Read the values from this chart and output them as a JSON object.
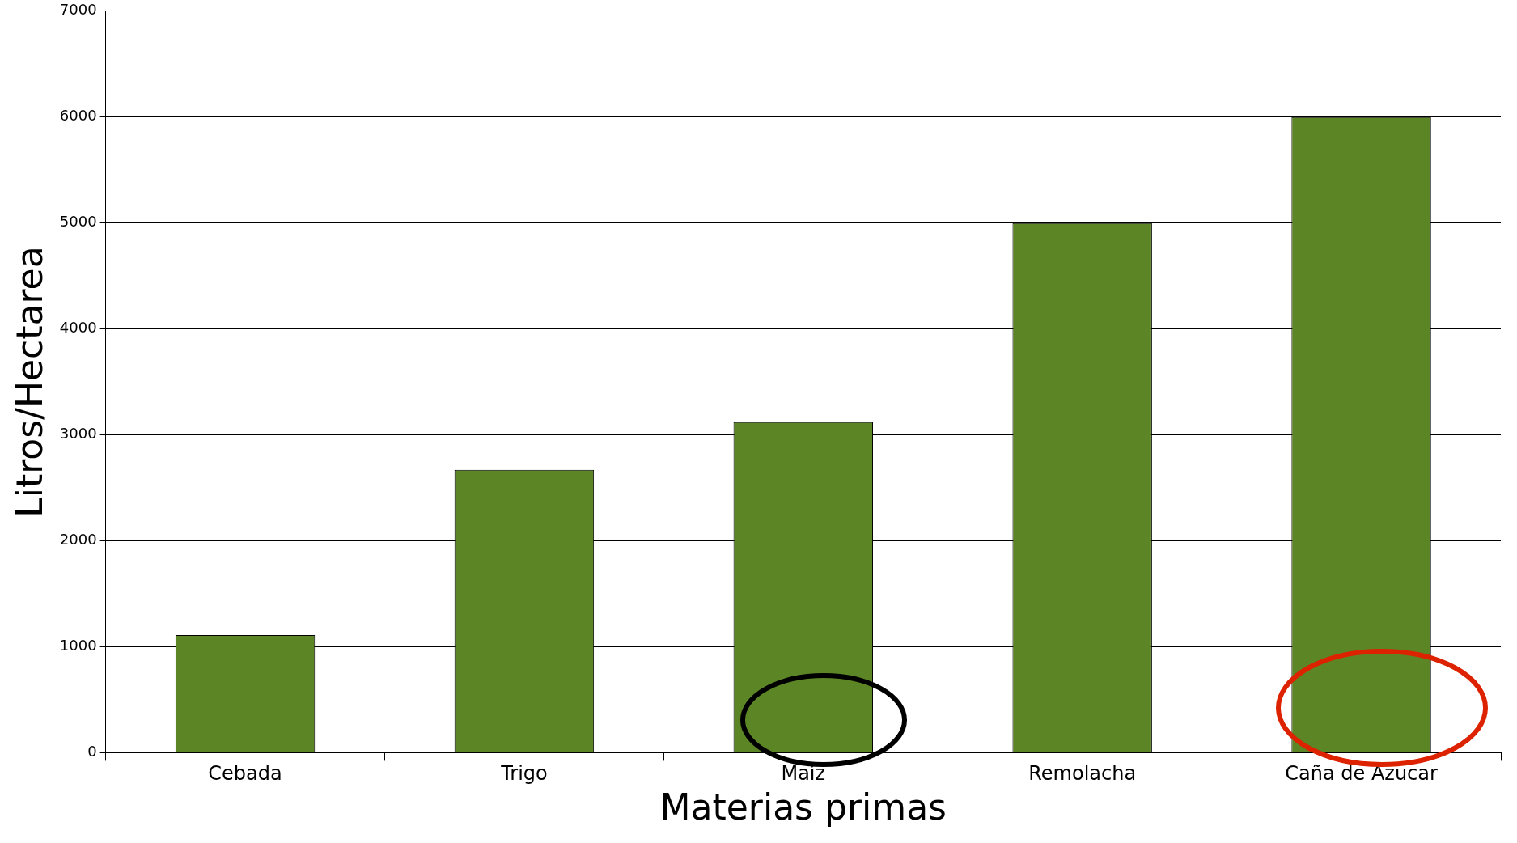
{
  "chart_data": {
    "type": "bar",
    "xlabel": "Materias primas",
    "ylabel": "Litros/Hectarea",
    "categories": [
      "Cebada",
      "Trigo",
      "Maíz",
      "Remolacha",
      "Caña de Azucar"
    ],
    "values": [
      1110,
      2670,
      3120,
      5000,
      6000
    ],
    "color": "#5c8526",
    "ylim": [
      0,
      7000
    ],
    "yticks": [
      0,
      1000,
      2000,
      3000,
      4000,
      5000,
      6000,
      7000
    ],
    "grid": "y",
    "legend": false
  }
}
